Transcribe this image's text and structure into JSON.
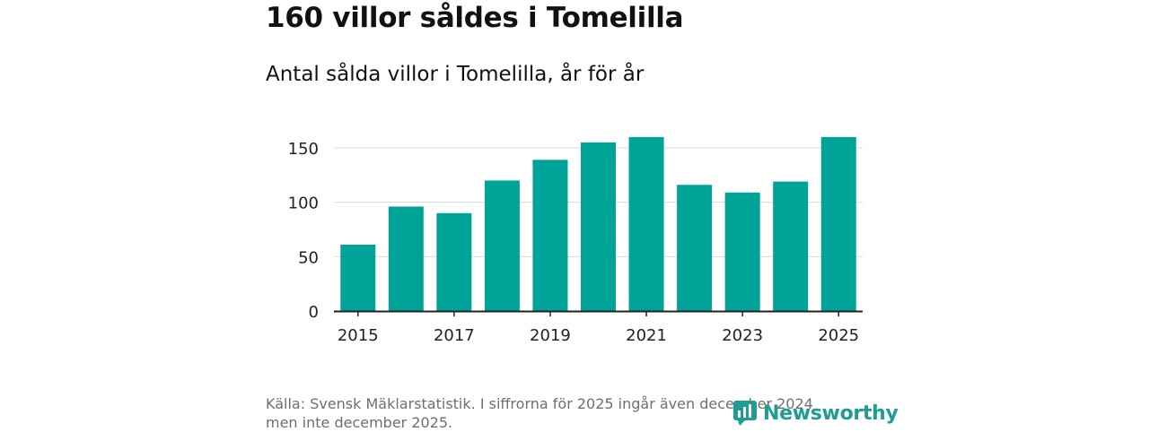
{
  "title": "160 villor såldes i Tomelilla",
  "subtitle": "Antal sålda villor i Tomelilla, år för år",
  "source_line1": "Källa: Svensk Mäklarstatistik. I siffrorna för 2025 ingår även december 2024",
  "source_line2": "men inte december 2025.",
  "logo_text": "Newsworthy",
  "colors": {
    "bar": "#00a398",
    "grid": "#d9d9d9",
    "axis": "#222222",
    "text": "#222222",
    "logo": "#1f9d92"
  },
  "chart_data": {
    "type": "bar",
    "title": "Antal sålda villor i Tomelilla, år för år",
    "xlabel": "",
    "ylabel": "",
    "categories": [
      "2015",
      "2016",
      "2017",
      "2018",
      "2019",
      "2020",
      "2021",
      "2022",
      "2023",
      "2024",
      "2025"
    ],
    "values": [
      61,
      96,
      90,
      120,
      139,
      155,
      160,
      116,
      109,
      119,
      160
    ],
    "ylim": [
      0,
      160
    ],
    "yticks": [
      0,
      50,
      100,
      150
    ],
    "xtick_labels": [
      "2015",
      "2017",
      "2019",
      "2021",
      "2023",
      "2025"
    ],
    "grid": true
  }
}
